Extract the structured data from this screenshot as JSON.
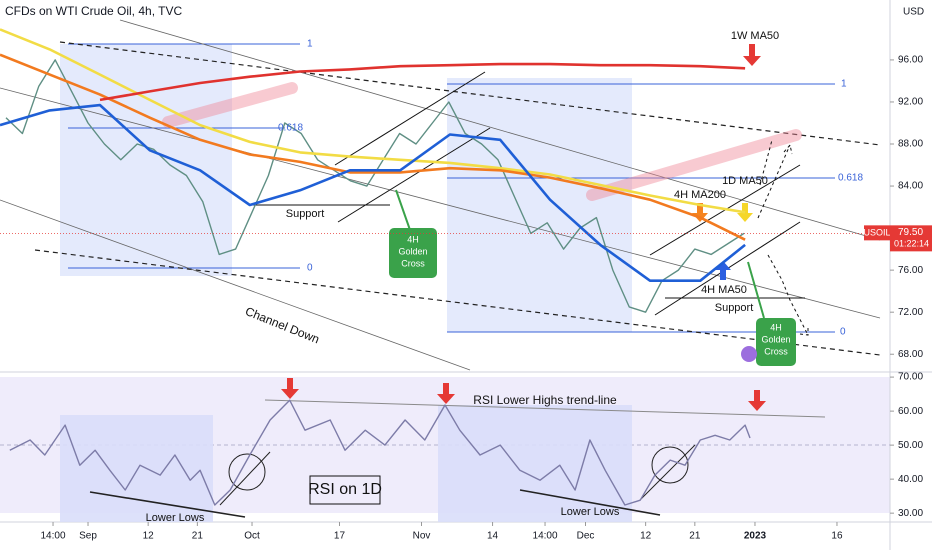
{
  "chart_data": [
    {
      "type": "line",
      "title": "CFDs on WTI Crude Oil, 4h, TVC",
      "y_unit": "USD",
      "xlim": [
        227.9,
        390.7
      ],
      "ylim": [
        66.5,
        101.7
      ],
      "yticks": [
        {
          "value": 96,
          "label": "96.00"
        },
        {
          "value": 92,
          "label": "92.00"
        },
        {
          "value": 88,
          "label": "88.00"
        },
        {
          "value": 84,
          "label": "84.00"
        },
        {
          "value": 76,
          "label": "76.00"
        },
        {
          "value": 72,
          "label": "72.00"
        },
        {
          "value": 68,
          "label": "68.00"
        }
      ],
      "series": [
        {
          "color": "#5f8f84",
          "x": [
            229,
            232,
            235,
            238,
            241,
            244,
            247,
            250,
            253,
            256,
            259,
            262,
            265,
            268,
            271,
            274,
            277,
            280,
            283,
            286,
            289,
            292,
            295,
            298,
            301,
            304,
            307,
            310,
            313,
            316,
            319,
            322,
            325,
            328,
            331,
            334,
            337,
            340,
            343,
            346,
            349,
            352,
            355,
            358,
            361,
            364
          ],
          "values": [
            90.5,
            89,
            93.5,
            96,
            93,
            90,
            88,
            86.5,
            88,
            87.5,
            86,
            85,
            82.5,
            77.5,
            78,
            81.5,
            85,
            90,
            89,
            86.5,
            85.5,
            84.5,
            84,
            86.5,
            89,
            88,
            90,
            92,
            89,
            88,
            86.5,
            83,
            79.5,
            80.5,
            78,
            80,
            81,
            76,
            72.5,
            72,
            75,
            76,
            78,
            77.5,
            78.5,
            79.5
          ]
        },
        {
          "color": "#f2dc45",
          "x": [
            227.9,
            237.0,
            246.2,
            255.3,
            264.5,
            273.6,
            282.8,
            291.9,
            301.1,
            310.2,
            319.4,
            328.5,
            337.7,
            346.8,
            356.0,
            364.2
          ],
          "values": [
            98.9,
            97.0,
            94.6,
            92.2,
            89.8,
            88.2,
            87.2,
            86.8,
            86.5,
            86.2,
            85.7,
            85.1,
            84.1,
            83.1,
            82.2,
            81.5
          ]
        },
        {
          "color": "#f27a1f",
          "x": [
            227.9,
            237.0,
            246.2,
            255.3,
            264.5,
            273.6,
            282.8,
            291.9,
            301.1,
            310.2,
            319.4,
            328.5,
            337.7,
            346.8,
            356.0,
            364.2
          ],
          "values": [
            96.5,
            94.6,
            92.7,
            90.5,
            88.4,
            87.0,
            86.3,
            85.3,
            85.3,
            85.7,
            85.5,
            84.8,
            83.8,
            82.7,
            81.0,
            78.9
          ]
        },
        {
          "color": "#1f5fd6",
          "x": [
            227.9,
            237.0,
            246.2,
            255.3,
            264.5,
            273.6,
            282.8,
            291.9,
            301.1,
            310.2,
            319.4,
            328.5,
            337.7,
            346.8,
            356.0,
            364.2
          ],
          "values": [
            89.8,
            91.2,
            91.7,
            87.4,
            85.5,
            82.2,
            83.6,
            85.5,
            85.5,
            88.9,
            88.4,
            82.7,
            78.4,
            75.0,
            75.0,
            78.4
          ]
        },
        {
          "color": "#e0322e",
          "x": [
            246.2,
            255.3,
            264.5,
            273.6,
            282.8,
            291.9,
            301.1,
            310.2,
            319.4,
            328.5,
            337.7,
            346.8,
            356.0,
            364.2
          ],
          "values": [
            92.2,
            93.0,
            93.8,
            94.4,
            94.9,
            95.1,
            95.4,
            95.5,
            95.6,
            95.6,
            95.5,
            95.5,
            95.4,
            95.2
          ]
        }
      ],
      "last": {
        "symbol": "USOIL",
        "value": 79.5,
        "label": "79.50",
        "countdown": "01:22:14"
      },
      "annotations": [
        "1W MA50",
        "1",
        "0.618",
        "0",
        "1",
        "0.618",
        "0",
        "Support",
        "Support",
        "4H MA200",
        "1D MA50",
        "4H MA50",
        "Channel Down"
      ],
      "golden_cross_1": [
        "4H",
        "Golden",
        "Cross"
      ],
      "golden_cross_2": [
        "4H",
        "Golden",
        "Cross"
      ]
    },
    {
      "type": "line",
      "xlim": [
        227.9,
        390.7
      ],
      "ylim": [
        27.4,
        71.5
      ],
      "yticks": [
        {
          "value": 70,
          "label": "70.00"
        },
        {
          "value": 60,
          "label": "60.00"
        },
        {
          "value": 50,
          "label": "50.00"
        },
        {
          "value": 40,
          "label": "40.00"
        },
        {
          "value": 30,
          "label": "30.00"
        }
      ],
      "xticks": [
        {
          "value": 237.6,
          "label": "14:00"
        },
        {
          "value": 244,
          "label": "Sep"
        },
        {
          "value": 255,
          "label": "12"
        },
        {
          "value": 264,
          "label": "21"
        },
        {
          "value": 274,
          "label": "Oct"
        },
        {
          "value": 290,
          "label": "17"
        },
        {
          "value": 305,
          "label": "Nov"
        },
        {
          "value": 318,
          "label": "14"
        },
        {
          "value": 327.6,
          "label": "14:00"
        },
        {
          "value": 335,
          "label": "Dec"
        },
        {
          "value": 346,
          "label": "12"
        },
        {
          "value": 355,
          "label": "21"
        },
        {
          "value": 366,
          "label": "2023"
        },
        {
          "value": 381,
          "label": "16"
        }
      ],
      "series": [
        {
          "color": "#7d7ca8",
          "x": [
            229.7,
            233.4,
            236.1,
            239.8,
            242.5,
            245.3,
            248.0,
            250.8,
            253.5,
            257.2,
            259.9,
            262.7,
            264.5,
            267.2,
            270.0,
            273.6,
            277.3,
            280.9,
            283.7,
            288.3,
            291.0,
            294.7,
            298.3,
            302.0,
            305.6,
            309.3,
            312.0,
            315.7,
            319.4,
            323.0,
            326.7,
            330.3,
            333.1,
            335.8,
            338.6,
            342.2,
            345.0,
            347.7,
            350.5,
            353.2,
            356.0,
            358.7,
            361.4,
            364.2,
            365.1
          ],
          "values": [
            48.5,
            51.5,
            47.1,
            55.9,
            44.1,
            48.5,
            42.6,
            36.8,
            44.1,
            41.2,
            47.1,
            39.7,
            42.6,
            32.4,
            36.8,
            47.1,
            57.4,
            63.2,
            54.4,
            57.4,
            48.5,
            54.4,
            50.0,
            57.4,
            51.5,
            61.8,
            54.4,
            47.1,
            50.0,
            42.6,
            39.7,
            44.1,
            36.8,
            51.5,
            42.6,
            32.4,
            33.8,
            41.2,
            45.6,
            44.1,
            51.5,
            52.9,
            51.5,
            55.9,
            52.1
          ]
        }
      ],
      "annotations": [
        "RSI Lower Highs trend-line",
        "RSI on 1D",
        "Lower Lows",
        "Lower Lows"
      ]
    }
  ]
}
